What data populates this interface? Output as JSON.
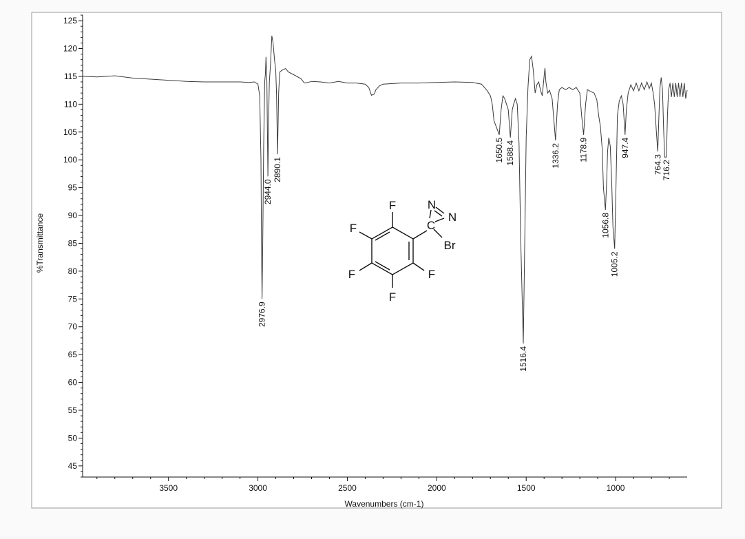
{
  "chart_data": {
    "type": "line",
    "xlabel": "Wavenumbers (cm-1)",
    "ylabel": "%Transmittance",
    "xlim": [
      3980,
      600
    ],
    "ylim": [
      43,
      126
    ],
    "x_ticks": [
      3500,
      3000,
      2500,
      2000,
      1500,
      1000
    ],
    "y_ticks": [
      45,
      50,
      55,
      60,
      65,
      70,
      75,
      80,
      85,
      90,
      95,
      100,
      105,
      110,
      115,
      120,
      125
    ],
    "grid": false,
    "baseline": 114.6,
    "series": [
      {
        "points": [
          [
            3980,
            115.0
          ],
          [
            3900,
            114.9
          ],
          [
            3800,
            115.1
          ],
          [
            3700,
            114.7
          ],
          [
            3600,
            114.5
          ],
          [
            3500,
            114.3
          ],
          [
            3400,
            114.1
          ],
          [
            3300,
            114.0
          ],
          [
            3200,
            114.0
          ],
          [
            3100,
            114.0
          ],
          [
            3050,
            113.9
          ],
          [
            3020,
            114.0
          ],
          [
            3000,
            113.6
          ],
          [
            2990,
            111.5
          ],
          [
            2983,
            100
          ],
          [
            2980,
            85
          ],
          [
            2976.9,
            75.0
          ],
          [
            2973,
            85
          ],
          [
            2968,
            102
          ],
          [
            2962,
            114
          ],
          [
            2958,
            115.5
          ],
          [
            2955,
            118.5
          ],
          [
            2950,
            114
          ],
          [
            2947,
            106
          ],
          [
            2944.0,
            97.0
          ],
          [
            2941,
            106
          ],
          [
            2936,
            114
          ],
          [
            2930,
            117
          ],
          [
            2922,
            122.3
          ],
          [
            2915,
            121
          ],
          [
            2907,
            118
          ],
          [
            2900,
            116
          ],
          [
            2896,
            112
          ],
          [
            2890.1,
            101.0
          ],
          [
            2884,
            112
          ],
          [
            2878,
            115.8
          ],
          [
            2860,
            116.2
          ],
          [
            2845,
            116.4
          ],
          [
            2830,
            115.8
          ],
          [
            2800,
            115.3
          ],
          [
            2760,
            114.6
          ],
          [
            2740,
            113.8
          ],
          [
            2720,
            113.9
          ],
          [
            2700,
            114.1
          ],
          [
            2650,
            114.0
          ],
          [
            2600,
            113.8
          ],
          [
            2550,
            114.1
          ],
          [
            2500,
            113.8
          ],
          [
            2450,
            113.8
          ],
          [
            2400,
            113.6
          ],
          [
            2380,
            113.0
          ],
          [
            2365,
            111.6
          ],
          [
            2350,
            111.8
          ],
          [
            2340,
            112.6
          ],
          [
            2320,
            113.3
          ],
          [
            2300,
            113.6
          ],
          [
            2200,
            113.8
          ],
          [
            2100,
            113.8
          ],
          [
            2000,
            113.9
          ],
          [
            1900,
            114.0
          ],
          [
            1800,
            113.9
          ],
          [
            1750,
            113.6
          ],
          [
            1720,
            112.5
          ],
          [
            1700,
            111.5
          ],
          [
            1690,
            110.0
          ],
          [
            1680,
            107
          ],
          [
            1650.5,
            104.5
          ],
          [
            1640,
            109
          ],
          [
            1630,
            111.5
          ],
          [
            1620,
            111.0
          ],
          [
            1600,
            109
          ],
          [
            1588.4,
            104.0
          ],
          [
            1578,
            109
          ],
          [
            1570,
            110.0
          ],
          [
            1560,
            111
          ],
          [
            1550,
            110
          ],
          [
            1540,
            103
          ],
          [
            1530,
            85
          ],
          [
            1516.4,
            67.0
          ],
          [
            1508,
            85
          ],
          [
            1500,
            104
          ],
          [
            1490,
            113
          ],
          [
            1480,
            118
          ],
          [
            1470,
            118.6
          ],
          [
            1460,
            116
          ],
          [
            1450,
            112
          ],
          [
            1440,
            113.5
          ],
          [
            1430,
            114.0
          ],
          [
            1420,
            112.5
          ],
          [
            1410,
            111.5
          ],
          [
            1400,
            115
          ],
          [
            1395,
            116.5
          ],
          [
            1390,
            114
          ],
          [
            1380,
            112.0
          ],
          [
            1370,
            112.5
          ],
          [
            1355,
            111
          ],
          [
            1336.2,
            103.5
          ],
          [
            1325,
            110
          ],
          [
            1315,
            112.6
          ],
          [
            1300,
            113.0
          ],
          [
            1280,
            112.6
          ],
          [
            1260,
            113.0
          ],
          [
            1240,
            112.6
          ],
          [
            1220,
            113.0
          ],
          [
            1200,
            112
          ],
          [
            1190,
            108
          ],
          [
            1178.9,
            104.5
          ],
          [
            1168,
            110
          ],
          [
            1158,
            112.6
          ],
          [
            1140,
            112.3
          ],
          [
            1120,
            112.0
          ],
          [
            1105,
            110.8
          ],
          [
            1095,
            108
          ],
          [
            1085,
            106
          ],
          [
            1075,
            102
          ],
          [
            1068,
            95
          ],
          [
            1056.8,
            91.0
          ],
          [
            1050,
            96
          ],
          [
            1045,
            101.5
          ],
          [
            1038,
            104
          ],
          [
            1030,
            102.5
          ],
          [
            1022,
            96
          ],
          [
            1015,
            88
          ],
          [
            1005.2,
            84.0
          ],
          [
            998,
            95
          ],
          [
            990,
            108
          ],
          [
            980,
            110.5
          ],
          [
            968,
            111.5
          ],
          [
            958,
            110
          ],
          [
            947.4,
            104.5
          ],
          [
            940,
            109
          ],
          [
            930,
            112
          ],
          [
            915,
            113.5
          ],
          [
            900,
            112.4
          ],
          [
            885,
            113.8
          ],
          [
            870,
            112.4
          ],
          [
            855,
            113.8
          ],
          [
            840,
            112.6
          ],
          [
            825,
            114.0
          ],
          [
            812,
            112.8
          ],
          [
            800,
            113.8
          ],
          [
            790,
            112.0
          ],
          [
            782,
            110
          ],
          [
            772,
            105
          ],
          [
            764.3,
            101.5
          ],
          [
            758,
            108
          ],
          [
            752,
            113
          ],
          [
            745,
            114.8
          ],
          [
            738,
            112.5
          ],
          [
            732,
            106
          ],
          [
            726,
            100.5
          ],
          [
            716.2,
            100.5
          ],
          [
            710,
            108
          ],
          [
            704,
            112.5
          ],
          [
            696,
            113.8
          ],
          [
            688,
            111.3
          ],
          [
            680,
            113.8
          ],
          [
            672,
            111.3
          ],
          [
            664,
            113.8
          ],
          [
            656,
            111.3
          ],
          [
            648,
            113.8
          ],
          [
            640,
            111.3
          ],
          [
            632,
            113.8
          ],
          [
            624,
            111.3
          ],
          [
            616,
            113.8
          ],
          [
            608,
            111.0
          ],
          [
            600,
            112.5
          ]
        ]
      }
    ],
    "peaks": [
      {
        "x": 2976.9,
        "y": 75.0,
        "label": "2976.9"
      },
      {
        "x": 2944.0,
        "y": 97.0,
        "label": "2944.0"
      },
      {
        "x": 2890.1,
        "y": 101.0,
        "label": "2890.1"
      },
      {
        "x": 1650.5,
        "y": 104.5,
        "label": "1650.5"
      },
      {
        "x": 1588.4,
        "y": 104.0,
        "label": "1588.4"
      },
      {
        "x": 1516.4,
        "y": 67.0,
        "label": "1516.4"
      },
      {
        "x": 1336.2,
        "y": 103.5,
        "label": "1336.2"
      },
      {
        "x": 1178.9,
        "y": 104.5,
        "label": "1178.9"
      },
      {
        "x": 1056.8,
        "y": 91.0,
        "label": "1056.8"
      },
      {
        "x": 1005.2,
        "y": 84.0,
        "label": "1005.2"
      },
      {
        "x": 947.4,
        "y": 104.5,
        "label": "947.4"
      },
      {
        "x": 764.3,
        "y": 101.5,
        "label": "764.3"
      },
      {
        "x": 716.2,
        "y": 100.5,
        "label": "716.2"
      }
    ]
  },
  "structure": {
    "atoms": {
      "f_top": "F",
      "f_upper_left": "F",
      "f_lower_left": "F",
      "f_lower_right": "F",
      "f_bottom": "F",
      "n_top": "N",
      "n_right": "N",
      "c_ring": "C",
      "br": "Br"
    }
  }
}
